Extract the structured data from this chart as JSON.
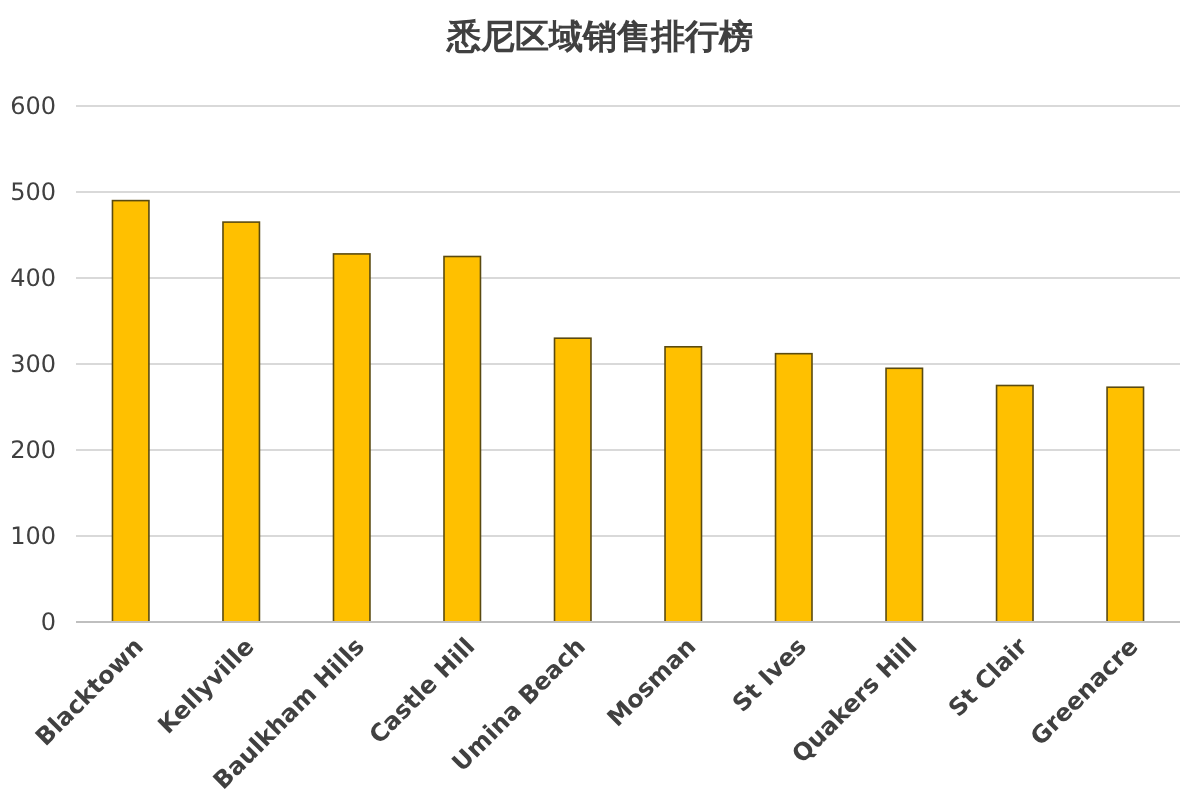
{
  "chart_data": {
    "type": "bar",
    "title": "悉尼区域销售排行榜",
    "categories": [
      "Blacktown",
      "Kellyville",
      "Baulkham Hills",
      "Castle Hill",
      "Umina Beach",
      "Mosman",
      "St Ives",
      "Quakers Hill",
      "St Clair",
      "Greenacre"
    ],
    "values": [
      490,
      465,
      428,
      425,
      330,
      320,
      312,
      295,
      275,
      273
    ],
    "color": "#ffc000",
    "ylim": [
      0,
      600
    ],
    "yticks": [
      0,
      100,
      200,
      300,
      400,
      500,
      600
    ],
    "grid": "y"
  }
}
